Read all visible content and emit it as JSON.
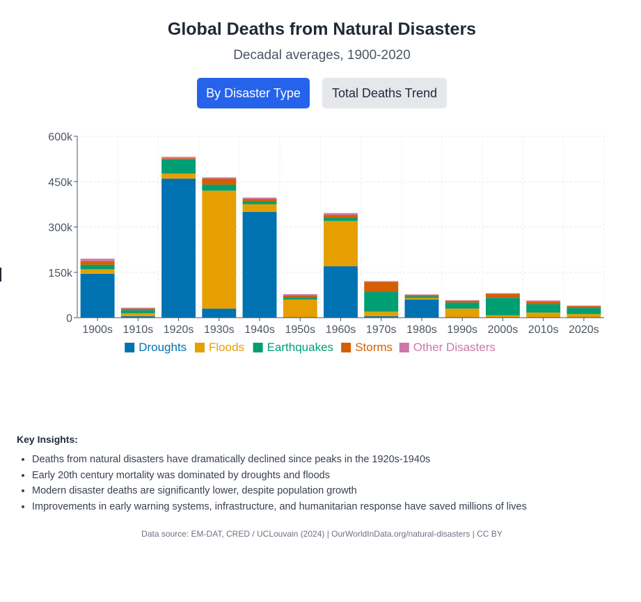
{
  "header": {
    "title": "Global Deaths from Natural Disasters",
    "subtitle": "Decadal averages, 1900-2020"
  },
  "buttons": {
    "by_type": "By Disaster Type",
    "total_trend": "Total Deaths Trend"
  },
  "chart_data": {
    "type": "bar",
    "stacked": true,
    "categories": [
      "1900s",
      "1910s",
      "1920s",
      "1930s",
      "1940s",
      "1950s",
      "1960s",
      "1970s",
      "1980s",
      "1990s",
      "2000s",
      "2010s",
      "2020s"
    ],
    "series": [
      {
        "name": "Droughts",
        "color": "#0072b2",
        "values": [
          145000,
          5000,
          460000,
          30000,
          350000,
          2000,
          170000,
          5000,
          60000,
          2000,
          2000,
          2000,
          2000
        ]
      },
      {
        "name": "Floods",
        "color": "#e69f00",
        "values": [
          15000,
          10000,
          17000,
          390000,
          25000,
          58000,
          150000,
          15000,
          5000,
          28000,
          6000,
          15000,
          10000
        ]
      },
      {
        "name": "Earthquakes",
        "color": "#009e73",
        "values": [
          15000,
          10000,
          45000,
          20000,
          10000,
          8000,
          10000,
          65000,
          6000,
          20000,
          58000,
          28000,
          20000
        ]
      },
      {
        "name": "Storms",
        "color": "#d55e00",
        "values": [
          12000,
          5000,
          5000,
          20000,
          8000,
          6000,
          10000,
          33000,
          4000,
          6000,
          12000,
          8000,
          6000
        ]
      },
      {
        "name": "Other Disasters",
        "color": "#cc79a7",
        "values": [
          8000,
          3000,
          5000,
          4000,
          4000,
          4000,
          6000,
          3000,
          2000,
          2000,
          3000,
          4000,
          2000
        ]
      }
    ],
    "yticks": [
      "0",
      "150k",
      "300k",
      "450k",
      "600k"
    ],
    "ylim": [
      0,
      600000
    ],
    "grid": true,
    "legend_position": "bottom"
  },
  "insights": {
    "heading": "Key Insights:",
    "items": [
      "Deaths from natural disasters have dramatically declined since peaks in the 1920s-1940s",
      "Early 20th century mortality was dominated by droughts and floods",
      "Modern disaster deaths are significantly lower, despite population growth",
      "Improvements in early warning systems, infrastructure, and humanitarian response have saved millions of lives"
    ]
  },
  "footer": {
    "source": "Data source: EM-DAT, CRED / UCLouvain (2024) | OurWorldInData.org/natural-disasters | CC BY"
  }
}
